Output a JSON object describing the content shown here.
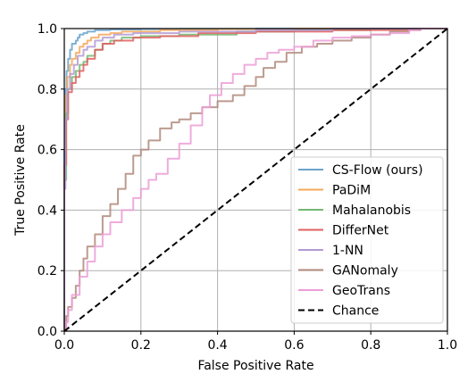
{
  "chart_data": {
    "type": "line",
    "title": "",
    "xlabel": "False Positive Rate",
    "ylabel": "True Positive Rate",
    "xlim": [
      0.0,
      1.0
    ],
    "ylim": [
      0.0,
      1.0
    ],
    "xticks": [
      "0.0",
      "0.2",
      "0.4",
      "0.6",
      "0.8",
      "1.0"
    ],
    "yticks": [
      "0.0",
      "0.2",
      "0.4",
      "0.6",
      "0.8",
      "1.0"
    ],
    "grid": true,
    "legend_position": "lower-right",
    "series": [
      {
        "name": "CS-Flow (ours)",
        "color": "#6aa3cc",
        "dash": "solid",
        "points": [
          [
            0,
            0
          ],
          [
            0,
            0.6
          ],
          [
            0.003,
            0.8
          ],
          [
            0.006,
            0.86
          ],
          [
            0.01,
            0.9
          ],
          [
            0.015,
            0.93
          ],
          [
            0.02,
            0.95
          ],
          [
            0.03,
            0.96
          ],
          [
            0.035,
            0.97
          ],
          [
            0.04,
            0.98
          ],
          [
            0.05,
            0.985
          ],
          [
            0.06,
            0.99
          ],
          [
            0.08,
            0.995
          ],
          [
            0.12,
            0.997
          ],
          [
            0.2,
            0.998
          ],
          [
            0.3,
            0.999
          ],
          [
            0.5,
            1.0
          ],
          [
            1.0,
            1.0
          ]
        ]
      },
      {
        "name": "PaDiM",
        "color": "#f5a85a",
        "dash": "solid",
        "points": [
          [
            0,
            0
          ],
          [
            0,
            0.55
          ],
          [
            0.004,
            0.78
          ],
          [
            0.008,
            0.84
          ],
          [
            0.015,
            0.88
          ],
          [
            0.02,
            0.9
          ],
          [
            0.03,
            0.92
          ],
          [
            0.04,
            0.94
          ],
          [
            0.05,
            0.95
          ],
          [
            0.06,
            0.96
          ],
          [
            0.07,
            0.97
          ],
          [
            0.09,
            0.98
          ],
          [
            0.12,
            0.985
          ],
          [
            0.15,
            0.99
          ],
          [
            0.25,
            0.995
          ],
          [
            0.4,
            0.998
          ],
          [
            0.6,
            1.0
          ],
          [
            1.0,
            1.0
          ]
        ]
      },
      {
        "name": "Mahalanobis",
        "color": "#72b872",
        "dash": "solid",
        "points": [
          [
            0,
            0
          ],
          [
            0,
            0.5
          ],
          [
            0.005,
            0.72
          ],
          [
            0.01,
            0.8
          ],
          [
            0.02,
            0.84
          ],
          [
            0.03,
            0.86
          ],
          [
            0.04,
            0.88
          ],
          [
            0.05,
            0.89
          ],
          [
            0.06,
            0.91
          ],
          [
            0.08,
            0.93
          ],
          [
            0.1,
            0.95
          ],
          [
            0.12,
            0.96
          ],
          [
            0.15,
            0.97
          ],
          [
            0.2,
            0.975
          ],
          [
            0.3,
            0.98
          ],
          [
            0.45,
            0.99
          ],
          [
            0.6,
            0.995
          ],
          [
            0.8,
            1.0
          ],
          [
            1.0,
            1.0
          ]
        ]
      },
      {
        "name": "DifferNet",
        "color": "#e06060",
        "dash": "solid",
        "points": [
          [
            0,
            0
          ],
          [
            0,
            0.55
          ],
          [
            0.005,
            0.7
          ],
          [
            0.01,
            0.79
          ],
          [
            0.02,
            0.82
          ],
          [
            0.03,
            0.84
          ],
          [
            0.04,
            0.86
          ],
          [
            0.05,
            0.88
          ],
          [
            0.06,
            0.9
          ],
          [
            0.08,
            0.93
          ],
          [
            0.1,
            0.95
          ],
          [
            0.13,
            0.96
          ],
          [
            0.18,
            0.97
          ],
          [
            0.25,
            0.975
          ],
          [
            0.35,
            0.985
          ],
          [
            0.5,
            0.99
          ],
          [
            0.7,
            0.995
          ],
          [
            0.9,
            1.0
          ],
          [
            1.0,
            1.0
          ]
        ]
      },
      {
        "name": "1-NN",
        "color": "#b49ad6",
        "dash": "solid",
        "points": [
          [
            0,
            0
          ],
          [
            0,
            0.47
          ],
          [
            0.003,
            0.7
          ],
          [
            0.008,
            0.8
          ],
          [
            0.015,
            0.85
          ],
          [
            0.025,
            0.88
          ],
          [
            0.035,
            0.91
          ],
          [
            0.05,
            0.93
          ],
          [
            0.06,
            0.94
          ],
          [
            0.08,
            0.96
          ],
          [
            0.1,
            0.97
          ],
          [
            0.13,
            0.98
          ],
          [
            0.18,
            0.985
          ],
          [
            0.3,
            0.99
          ],
          [
            0.5,
            0.995
          ],
          [
            0.7,
            1.0
          ],
          [
            1.0,
            1.0
          ]
        ]
      },
      {
        "name": "GANomaly",
        "color": "#b08a7c",
        "dash": "solid",
        "points": [
          [
            0,
            0
          ],
          [
            0.005,
            0.05
          ],
          [
            0.01,
            0.08
          ],
          [
            0.02,
            0.11
          ],
          [
            0.03,
            0.15
          ],
          [
            0.04,
            0.2
          ],
          [
            0.05,
            0.24
          ],
          [
            0.06,
            0.28
          ],
          [
            0.08,
            0.32
          ],
          [
            0.1,
            0.38
          ],
          [
            0.12,
            0.42
          ],
          [
            0.14,
            0.47
          ],
          [
            0.16,
            0.52
          ],
          [
            0.18,
            0.58
          ],
          [
            0.2,
            0.6
          ],
          [
            0.22,
            0.63
          ],
          [
            0.25,
            0.67
          ],
          [
            0.28,
            0.69
          ],
          [
            0.3,
            0.7
          ],
          [
            0.33,
            0.72
          ],
          [
            0.36,
            0.74
          ],
          [
            0.4,
            0.76
          ],
          [
            0.44,
            0.78
          ],
          [
            0.47,
            0.81
          ],
          [
            0.5,
            0.84
          ],
          [
            0.52,
            0.87
          ],
          [
            0.55,
            0.89
          ],
          [
            0.58,
            0.92
          ],
          [
            0.62,
            0.94
          ],
          [
            0.66,
            0.95
          ],
          [
            0.7,
            0.96
          ],
          [
            0.75,
            0.97
          ],
          [
            0.8,
            0.98
          ],
          [
            0.85,
            0.99
          ],
          [
            0.9,
            0.995
          ],
          [
            0.93,
            1.0
          ],
          [
            1.0,
            1.0
          ]
        ]
      },
      {
        "name": "GeoTrans",
        "color": "#ec9ed6",
        "dash": "solid",
        "points": [
          [
            0,
            0
          ],
          [
            0.005,
            0.03
          ],
          [
            0.01,
            0.07
          ],
          [
            0.02,
            0.12
          ],
          [
            0.04,
            0.18
          ],
          [
            0.06,
            0.23
          ],
          [
            0.08,
            0.28
          ],
          [
            0.1,
            0.32
          ],
          [
            0.12,
            0.36
          ],
          [
            0.15,
            0.4
          ],
          [
            0.18,
            0.44
          ],
          [
            0.2,
            0.47
          ],
          [
            0.22,
            0.5
          ],
          [
            0.24,
            0.52
          ],
          [
            0.27,
            0.57
          ],
          [
            0.3,
            0.62
          ],
          [
            0.33,
            0.68
          ],
          [
            0.36,
            0.74
          ],
          [
            0.38,
            0.78
          ],
          [
            0.41,
            0.82
          ],
          [
            0.44,
            0.85
          ],
          [
            0.47,
            0.88
          ],
          [
            0.5,
            0.9
          ],
          [
            0.53,
            0.92
          ],
          [
            0.56,
            0.93
          ],
          [
            0.6,
            0.94
          ],
          [
            0.65,
            0.96
          ],
          [
            0.7,
            0.97
          ],
          [
            0.75,
            0.975
          ],
          [
            0.8,
            0.98
          ],
          [
            0.85,
            0.985
          ],
          [
            0.9,
            0.995
          ],
          [
            0.93,
            1.0
          ],
          [
            1.0,
            1.0
          ]
        ]
      },
      {
        "name": "Chance",
        "color": "#000000",
        "dash": "dashed",
        "points": [
          [
            0,
            0
          ],
          [
            1,
            1
          ]
        ]
      }
    ]
  }
}
